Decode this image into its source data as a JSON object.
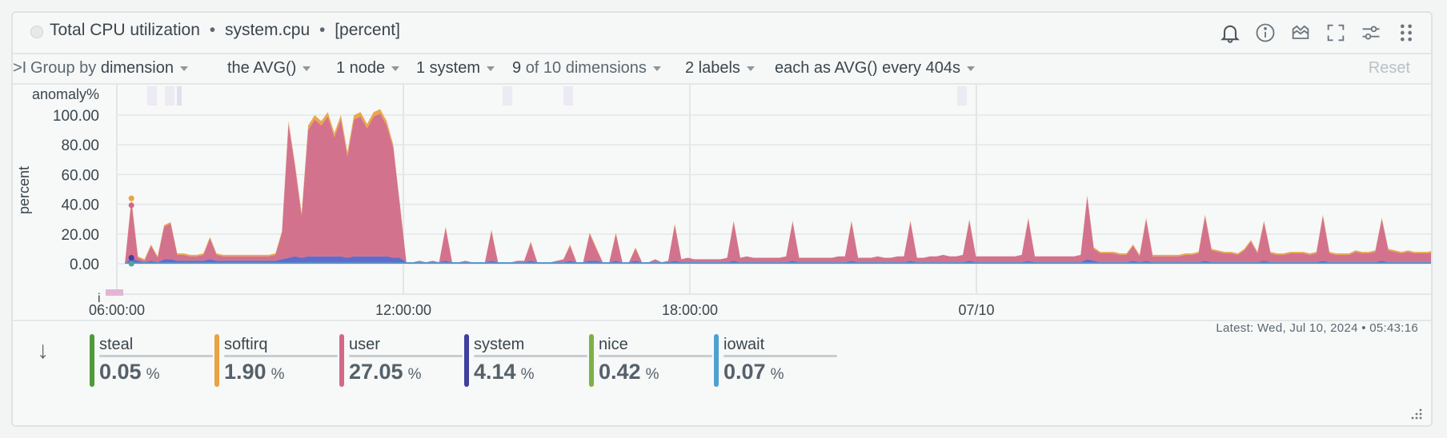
{
  "header": {
    "title": "Total CPU utilization",
    "context": "system.cpu",
    "units": "[percent]",
    "sep": "•",
    "icons": [
      "bell-icon",
      "info-icon",
      "anomaly-icon",
      "fullscreen-icon",
      "settings-icon",
      "drag-icon"
    ]
  },
  "toolbar": {
    "expand_symbol": ">I",
    "group_by_label": "Group by",
    "group_by_value": "dimension",
    "aggregation": "the AVG()",
    "nodes": "1 node",
    "instances": "1 system",
    "dimensions_count": "9",
    "dimensions_rest": "of 10 dimensions",
    "labels": "2 labels",
    "time_agg": "each as AVG() every 404s",
    "reset": "Reset"
  },
  "chart_data": {
    "type": "area",
    "ylabel": "percent",
    "anomaly_label": "anomaly%",
    "info_label": "i",
    "yticks": [
      "100.00",
      "80.00",
      "60.00",
      "40.00",
      "20.00",
      "0.00"
    ],
    "ylim": [
      0,
      100
    ],
    "xticks": [
      "06:00:00",
      "12:00:00",
      "18:00:00",
      "07/10"
    ],
    "grid": true,
    "series": [
      {
        "name": "user",
        "color": "#d16a87"
      },
      {
        "name": "system",
        "color": "#5b63c6"
      },
      {
        "name": "softirq",
        "color": "#e9a341"
      },
      {
        "name": "iowait",
        "color": "#4f9fd2"
      },
      {
        "name": "nice",
        "color": "#7fb044"
      },
      {
        "name": "steal",
        "color": "#4f9a3a"
      }
    ],
    "user_values": [
      0,
      38,
      2,
      1,
      10,
      3,
      22,
      24,
      4,
      4,
      3,
      3,
      4,
      14,
      4,
      3,
      3,
      3,
      3,
      3,
      3,
      3,
      3,
      4,
      18,
      90,
      60,
      28,
      85,
      92,
      88,
      94,
      80,
      92,
      68,
      92,
      94,
      86,
      94,
      96,
      88,
      74,
      36,
      0,
      0,
      1,
      0,
      1,
      0,
      22,
      0,
      0,
      1,
      0,
      0,
      0,
      20,
      0,
      0,
      0,
      1,
      1,
      12,
      0,
      0,
      0,
      1,
      2,
      10,
      0,
      0,
      18,
      8,
      0,
      0,
      18,
      0,
      0,
      8,
      0,
      0,
      2,
      0,
      1,
      24,
      2,
      3,
      2,
      2,
      2,
      2,
      2,
      3,
      26,
      3,
      4,
      3,
      3,
      3,
      3,
      3,
      4,
      26,
      3,
      3,
      3,
      3,
      3,
      3,
      4,
      4,
      26,
      3,
      3,
      3,
      4,
      3,
      3,
      4,
      4,
      26,
      3,
      3,
      4,
      4,
      5,
      4,
      4,
      5,
      27,
      4,
      4,
      4,
      4,
      4,
      4,
      4,
      5,
      28,
      4,
      4,
      4,
      4,
      4,
      4,
      4,
      5,
      42,
      8,
      6,
      6,
      6,
      5,
      5,
      10,
      4,
      28,
      4,
      4,
      4,
      4,
      4,
      5,
      5,
      6,
      30,
      8,
      7,
      6,
      6,
      5,
      8,
      14,
      6,
      26,
      6,
      5,
      5,
      6,
      6,
      6,
      5,
      6,
      30,
      6,
      5,
      5,
      5,
      7,
      6,
      6,
      7,
      28,
      8,
      7,
      6,
      7,
      6,
      6,
      6,
      7
    ],
    "system_values": [
      0,
      4,
      2,
      1,
      2,
      1,
      3,
      3,
      2,
      2,
      2,
      2,
      2,
      3,
      2,
      2,
      2,
      2,
      2,
      2,
      2,
      2,
      2,
      2,
      3,
      4,
      5,
      4,
      5,
      5,
      5,
      5,
      5,
      5,
      4,
      5,
      5,
      5,
      5,
      5,
      5,
      4,
      4,
      1,
      1,
      1,
      1,
      1,
      1,
      2,
      1,
      1,
      1,
      1,
      1,
      1,
      2,
      1,
      1,
      1,
      1,
      1,
      2,
      1,
      1,
      1,
      1,
      1,
      2,
      1,
      1,
      2,
      2,
      1,
      1,
      2,
      1,
      1,
      2,
      1,
      1,
      1,
      1,
      1,
      2,
      1,
      1,
      1,
      1,
      1,
      1,
      1,
      1,
      2,
      1,
      1,
      1,
      1,
      1,
      1,
      1,
      1,
      2,
      1,
      1,
      1,
      1,
      1,
      1,
      1,
      1,
      2,
      1,
      1,
      1,
      1,
      1,
      1,
      1,
      1,
      2,
      1,
      1,
      1,
      1,
      1,
      1,
      1,
      1,
      2,
      1,
      1,
      1,
      1,
      1,
      1,
      1,
      1,
      2,
      1,
      1,
      1,
      1,
      1,
      1,
      1,
      1,
      3,
      2,
      1,
      1,
      1,
      1,
      1,
      2,
      1,
      2,
      1,
      1,
      1,
      1,
      1,
      1,
      1,
      1,
      2,
      1,
      1,
      1,
      1,
      1,
      1,
      1,
      1,
      2,
      1,
      1,
      1,
      1,
      1,
      1,
      1,
      1,
      2,
      1,
      1,
      1,
      1,
      1,
      1,
      1,
      1,
      2,
      1,
      1,
      1,
      1,
      1,
      1,
      1,
      1
    ],
    "softirq_values": [
      0,
      2,
      1,
      1,
      1,
      1,
      1,
      1,
      1,
      1,
      1,
      1,
      1,
      1,
      1,
      1,
      1,
      1,
      1,
      1,
      1,
      1,
      1,
      1,
      1,
      2,
      2,
      2,
      3,
      3,
      3,
      3,
      3,
      3,
      3,
      3,
      3,
      3,
      3,
      3,
      3,
      2,
      1,
      0,
      0,
      0,
      0,
      0,
      0,
      1,
      0,
      0,
      0,
      0,
      0,
      0,
      1,
      0,
      0,
      0,
      0,
      0,
      1,
      0,
      0,
      0,
      0,
      0,
      1,
      0,
      0,
      1,
      1,
      0,
      0,
      1,
      0,
      0,
      1,
      0,
      0,
      0,
      0,
      0,
      1,
      0,
      0,
      0,
      0,
      0,
      0,
      0,
      0,
      1,
      0,
      0,
      0,
      0,
      0,
      0,
      0,
      0,
      1,
      0,
      0,
      0,
      0,
      0,
      0,
      0,
      0,
      1,
      0,
      0,
      0,
      0,
      0,
      0,
      0,
      0,
      1,
      0,
      0,
      0,
      0,
      0,
      0,
      0,
      0,
      1,
      0,
      0,
      0,
      0,
      0,
      0,
      0,
      0,
      1,
      0,
      0,
      0,
      0,
      0,
      0,
      0,
      0,
      1,
      1,
      1,
      1,
      1,
      1,
      1,
      1,
      1,
      1,
      1,
      1,
      1,
      1,
      1,
      1,
      1,
      1,
      1,
      1,
      1,
      1,
      1,
      1,
      1,
      1,
      1,
      1,
      1,
      1,
      1,
      1,
      1,
      1,
      1,
      1,
      1,
      1,
      1,
      1,
      1,
      1,
      1,
      1,
      1,
      1,
      1,
      1,
      1,
      1,
      1,
      1,
      1,
      1
    ]
  },
  "legend": {
    "items": [
      {
        "name": "steal",
        "value": "0.05",
        "unit": "%",
        "color": "#4f9a3a"
      },
      {
        "name": "softirq",
        "value": "1.90",
        "unit": "%",
        "color": "#e9a341"
      },
      {
        "name": "user",
        "value": "27.05",
        "unit": "%",
        "color": "#d16a87"
      },
      {
        "name": "system",
        "value": "4.14",
        "unit": "%",
        "color": "#3e3f9e"
      },
      {
        "name": "nice",
        "value": "0.42",
        "unit": "%",
        "color": "#7fb044"
      },
      {
        "name": "iowait",
        "value": "0.07",
        "unit": "%",
        "color": "#4f9fd2"
      }
    ],
    "latest": "Latest: Wed, Jul 10, 2024 • 05:43:16",
    "sort_icon": "arrow-down-icon"
  }
}
